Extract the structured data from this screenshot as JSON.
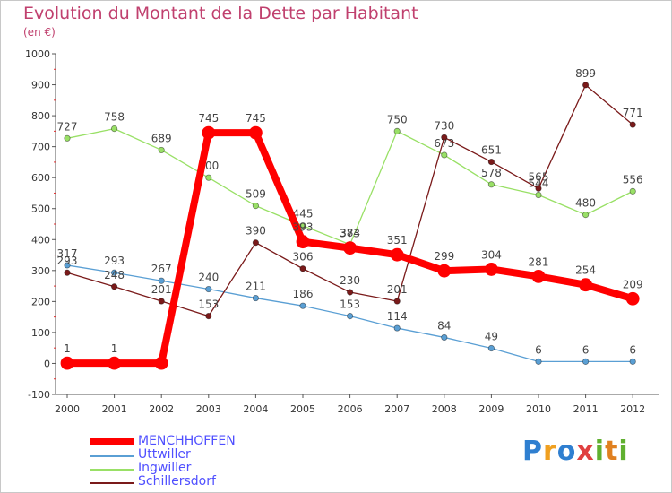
{
  "header": {
    "title": "Evolution du Montant de la Dette par Habitant",
    "unit": "(en €)"
  },
  "logo": {
    "text": "Proxiti"
  },
  "colors": {
    "MENCHHOFFEN": "#ff0000",
    "Uttwiller": "#5a9fd4",
    "Ingwiller": "#99e066",
    "Schillersdorf": "#7a1a1a"
  },
  "chart_data": {
    "type": "line",
    "x": [
      "2000",
      "2001",
      "2002",
      "2003",
      "2004",
      "2005",
      "2006",
      "2007",
      "2008",
      "2009",
      "2010",
      "2011",
      "2012"
    ],
    "ylim": [
      -100,
      1000
    ],
    "yticks": [
      -100,
      0,
      100,
      200,
      300,
      400,
      500,
      600,
      700,
      800,
      900,
      1000
    ],
    "grid": false,
    "legend": "bottom-left",
    "series": [
      {
        "name": "Uttwiller",
        "values": [
          317,
          293,
          267,
          240,
          211,
          186,
          153,
          114,
          84,
          49,
          6,
          6,
          6
        ],
        "labels": [
          true,
          true,
          true,
          true,
          true,
          true,
          true,
          true,
          true,
          true,
          true,
          true,
          true
        ]
      },
      {
        "name": "Ingwiller",
        "values": [
          727,
          758,
          689,
          600,
          509,
          445,
          384,
          750,
          673,
          578,
          544,
          480,
          556
        ],
        "labels": [
          true,
          true,
          true,
          true,
          true,
          true,
          true,
          true,
          true,
          true,
          true,
          true,
          true
        ]
      },
      {
        "name": "Schillersdorf",
        "values": [
          293,
          248,
          201,
          153,
          390,
          306,
          230,
          201,
          730,
          651,
          565,
          899,
          771
        ],
        "labels": [
          true,
          true,
          true,
          true,
          true,
          true,
          true,
          true,
          true,
          true,
          true,
          true,
          true
        ]
      },
      {
        "name": "MENCHHOFFEN",
        "values": [
          1,
          1,
          1,
          745,
          745,
          393,
          373,
          351,
          299,
          304,
          281,
          254,
          209
        ],
        "labels": [
          true,
          true,
          false,
          true,
          true,
          true,
          true,
          true,
          true,
          true,
          true,
          true,
          true
        ]
      }
    ]
  },
  "legend": {
    "items": [
      {
        "name": "MENCHHOFFEN"
      },
      {
        "name": "Uttwiller"
      },
      {
        "name": "Ingwiller"
      },
      {
        "name": "Schillersdorf"
      }
    ]
  }
}
